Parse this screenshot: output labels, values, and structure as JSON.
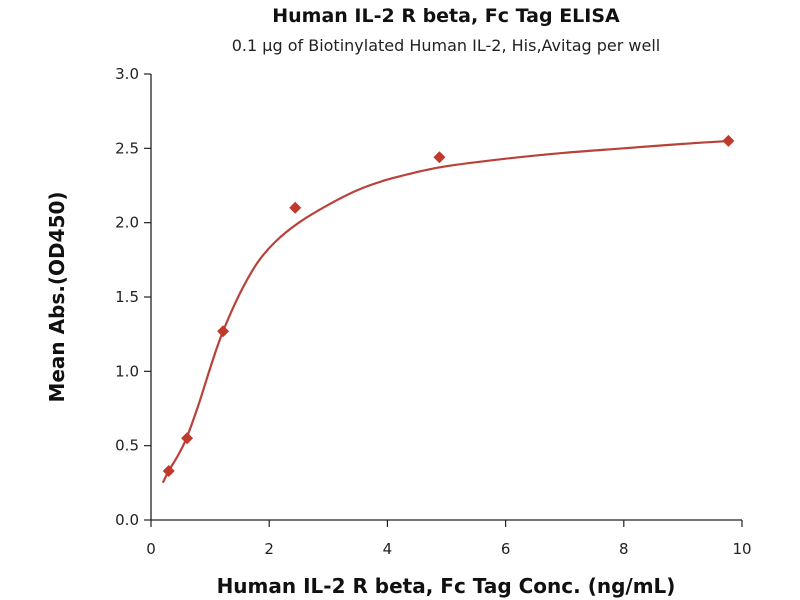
{
  "chart_data": {
    "type": "scatter",
    "title": "Human IL-2 R beta, Fc Tag ELISA",
    "subtitle": "0.1 µg of Biotinylated Human IL-2, His,Avitag per well",
    "xlabel": "Human IL-2 R beta, Fc Tag Conc. (ng/mL)",
    "ylabel": "Mean Abs.(OD450)",
    "xlim": [
      0,
      10
    ],
    "ylim": [
      0,
      3.0
    ],
    "x_ticks": [
      "0",
      "2",
      "4",
      "6",
      "8",
      "10"
    ],
    "y_ticks": [
      "0.0",
      "0.5",
      "1.0",
      "1.5",
      "2.0",
      "2.5",
      "3.0"
    ],
    "grid": false,
    "marker_color": "#c0392b",
    "curve_color": "#b8423a",
    "points": [
      {
        "x": 0.3,
        "y": 0.33
      },
      {
        "x": 0.61,
        "y": 0.55
      },
      {
        "x": 1.22,
        "y": 1.27
      },
      {
        "x": 2.44,
        "y": 2.1
      },
      {
        "x": 4.88,
        "y": 2.44
      },
      {
        "x": 9.77,
        "y": 2.55
      }
    ],
    "fit_curve": [
      {
        "x": 0.2,
        "y": 0.25
      },
      {
        "x": 0.3,
        "y": 0.33
      },
      {
        "x": 0.45,
        "y": 0.43
      },
      {
        "x": 0.6,
        "y": 0.55
      },
      {
        "x": 0.8,
        "y": 0.77
      },
      {
        "x": 1.0,
        "y": 1.02
      },
      {
        "x": 1.2,
        "y": 1.25
      },
      {
        "x": 1.5,
        "y": 1.52
      },
      {
        "x": 1.8,
        "y": 1.73
      },
      {
        "x": 2.1,
        "y": 1.87
      },
      {
        "x": 2.5,
        "y": 2.0
      },
      {
        "x": 3.0,
        "y": 2.12
      },
      {
        "x": 3.5,
        "y": 2.22
      },
      {
        "x": 4.0,
        "y": 2.29
      },
      {
        "x": 4.5,
        "y": 2.34
      },
      {
        "x": 5.0,
        "y": 2.38
      },
      {
        "x": 6.0,
        "y": 2.43
      },
      {
        "x": 7.0,
        "y": 2.47
      },
      {
        "x": 8.0,
        "y": 2.5
      },
      {
        "x": 9.0,
        "y": 2.53
      },
      {
        "x": 9.8,
        "y": 2.55
      }
    ]
  }
}
